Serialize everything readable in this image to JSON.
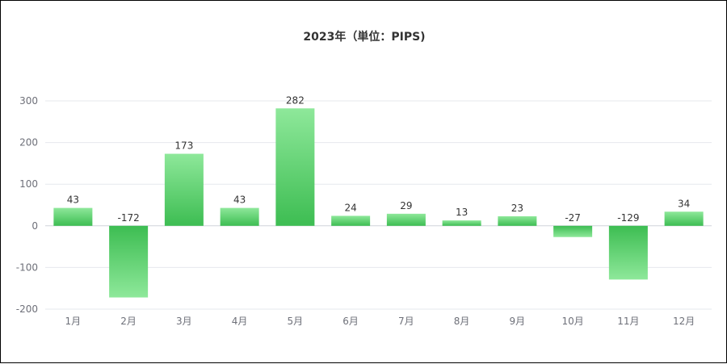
{
  "chart_data": {
    "type": "bar",
    "title": "2023年（単位：PIPS)",
    "categories": [
      "1月",
      "2月",
      "3月",
      "4月",
      "5月",
      "6月",
      "7月",
      "8月",
      "9月",
      "10月",
      "11月",
      "12月"
    ],
    "values": [
      43,
      -172,
      173,
      43,
      282,
      24,
      29,
      13,
      23,
      -27,
      -129,
      34
    ],
    "y_ticks": [
      "300",
      "200",
      "100",
      "0",
      "-100",
      "-200"
    ],
    "ylim": [
      -200,
      300
    ],
    "xlabel": "",
    "ylabel": "",
    "grid": true,
    "legend": false,
    "bar_color_top": "#8ee89a",
    "bar_color_bottom": "#3dbd52"
  }
}
